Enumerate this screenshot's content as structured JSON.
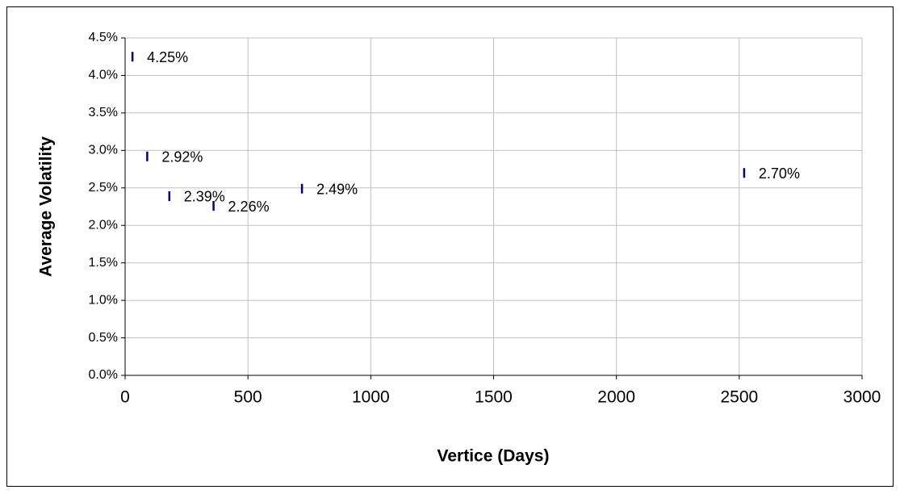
{
  "chart_data": {
    "type": "scatter",
    "x_label": "Vertice (Days)",
    "y_label": "Average Volatility",
    "series": [
      {
        "color": "#000080",
        "x": [
          30,
          90,
          180,
          360,
          720,
          2520
        ],
        "values": [
          4.25,
          2.92,
          2.39,
          2.26,
          2.49,
          2.7
        ],
        "value_labels": [
          "4.25%",
          "2.92%",
          "2.39%",
          "2.26%",
          "2.49%",
          "2.70%"
        ]
      }
    ],
    "xlim": [
      0,
      3000
    ],
    "xticks": [
      0,
      500,
      1000,
      1500,
      2000,
      2500,
      3000
    ],
    "ylim": [
      0,
      4.5
    ],
    "yticks": [
      {
        "value": 0,
        "label": "0.0%"
      },
      {
        "value": 0.5,
        "label": "0.5%"
      },
      {
        "value": 1,
        "label": "1.0%"
      },
      {
        "value": 1.5,
        "label": "1.5%"
      },
      {
        "value": 2,
        "label": "2.0%"
      },
      {
        "value": 2.5,
        "label": "2.5%"
      },
      {
        "value": 3,
        "label": "3.0%"
      },
      {
        "value": 3.5,
        "label": "3.5%"
      },
      {
        "value": 4,
        "label": "4.0%"
      },
      {
        "value": 4.5,
        "label": "4.5%"
      }
    ],
    "grid": true
  }
}
